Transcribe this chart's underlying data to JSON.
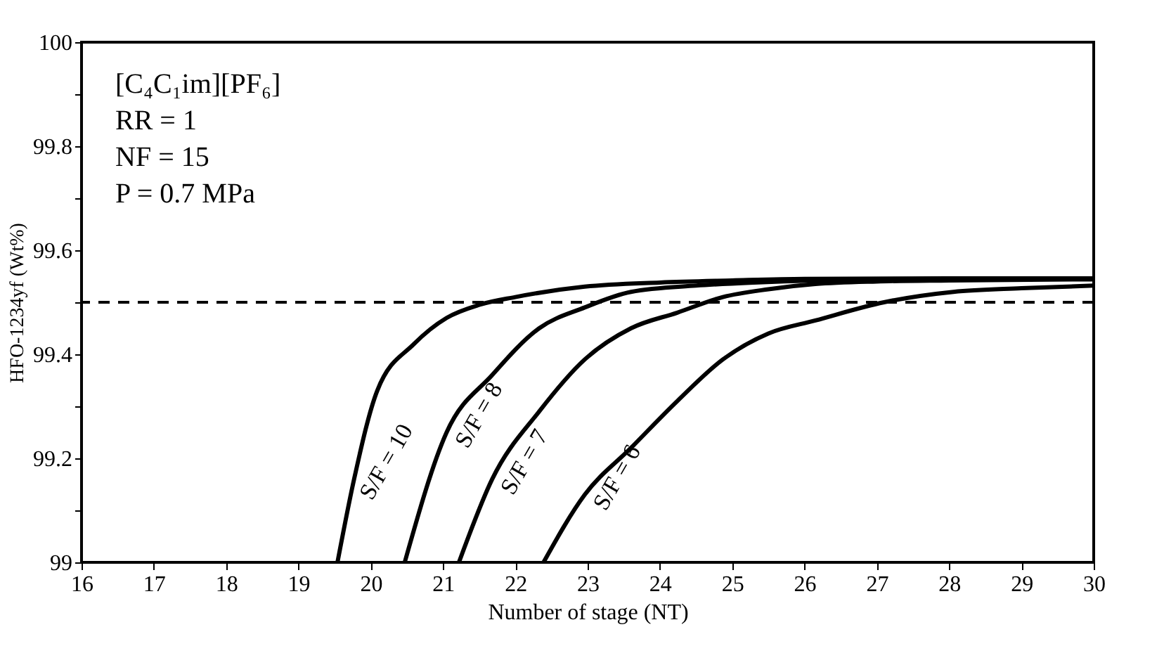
{
  "chart_data": {
    "type": "line",
    "xlabel": "Number of stage (NT)",
    "ylabel": "HFO-1234yf (Wt%)",
    "xlim": [
      16,
      30
    ],
    "xticks": [
      16,
      17,
      18,
      19,
      20,
      21,
      22,
      23,
      24,
      25,
      26,
      27,
      28,
      29,
      30
    ],
    "ylim": [
      99,
      100
    ],
    "yticks": [
      99,
      {
        "value": 99.1,
        "label": null
      },
      99.2,
      {
        "value": 99.3,
        "label": null
      },
      99.4,
      {
        "value": 99.5,
        "label": null
      },
      99.6,
      {
        "value": 99.7,
        "label": null
      },
      99.8,
      {
        "value": 99.9,
        "label": null
      },
      100
    ],
    "grid": false,
    "marker": "none",
    "line_style": "solid",
    "annotations": [
      "[C₄C₁im][PF₆]",
      "RR = 1",
      "NF = 15",
      "P = 0.7 MPa"
    ],
    "ref_lines": [
      {
        "axis": "y",
        "value": 99.5,
        "label": null,
        "color": "#000000",
        "line_style": "dashed"
      }
    ],
    "series": [
      {
        "name": "S/F = 10",
        "color": "#000000",
        "x": [
          19.54,
          19.77,
          20.09,
          20.6,
          21.05,
          21.5,
          22.0,
          22.96,
          24.0,
          25.0,
          26.0,
          28.0,
          30.0
        ],
        "values": [
          99.0,
          99.16,
          99.33,
          99.42,
          99.47,
          99.495,
          99.51,
          99.53,
          99.538,
          99.542,
          99.545,
          99.546,
          99.546
        ]
      },
      {
        "name": "S/F = 8",
        "color": "#000000",
        "x": [
          20.47,
          21.05,
          21.68,
          22.33,
          22.96,
          23.6,
          24.5,
          25.3,
          26.15,
          28.0,
          30.0
        ],
        "values": [
          99.0,
          99.25,
          99.36,
          99.45,
          99.49,
          99.52,
          99.532,
          99.538,
          99.542,
          99.545,
          99.546
        ]
      },
      {
        "name": "S/F = 7",
        "color": "#000000",
        "x": [
          21.22,
          21.68,
          22.33,
          22.96,
          23.6,
          24.24,
          24.87,
          25.5,
          26.15,
          27.0,
          28.0,
          30.0
        ],
        "values": [
          99.0,
          99.16,
          99.29,
          99.39,
          99.45,
          99.48,
          99.51,
          99.525,
          99.535,
          99.54,
          99.542,
          99.544
        ]
      },
      {
        "name": "S/F = 6",
        "color": "#000000",
        "x": [
          22.39,
          22.96,
          23.6,
          24.24,
          24.87,
          25.5,
          26.15,
          27.1,
          28.06,
          29.0,
          30.0
        ],
        "values": [
          99.0,
          99.13,
          99.22,
          99.31,
          99.39,
          99.44,
          99.465,
          99.5,
          99.52,
          99.527,
          99.532
        ]
      }
    ]
  }
}
